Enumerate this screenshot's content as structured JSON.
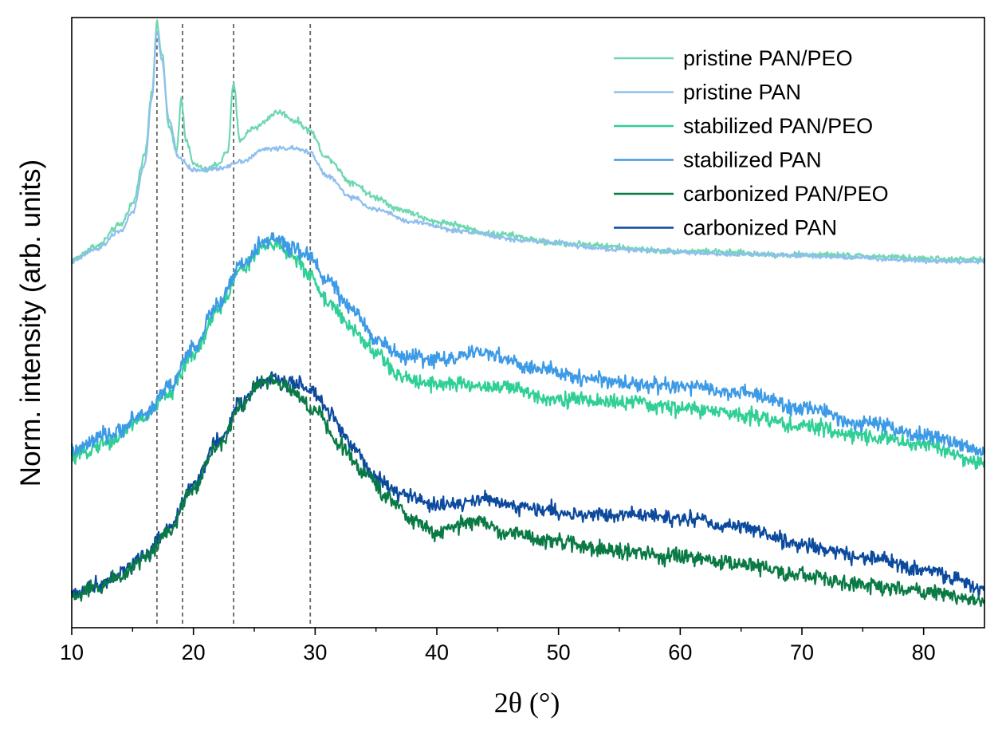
{
  "chart_data": {
    "type": "line",
    "title": "",
    "xlabel": "2θ (°)",
    "ylabel": "Norm. intensity (arb. units)",
    "xlim": [
      10,
      85
    ],
    "ylim": [
      0,
      100
    ],
    "xticks": [
      10,
      20,
      30,
      40,
      50,
      60,
      70,
      80
    ],
    "xtick_labels": [
      "10",
      "20",
      "30",
      "40",
      "50",
      "60",
      "70",
      "80"
    ],
    "grid": false,
    "legend_position": "top-right",
    "reference_lines_x": [
      17.0,
      19.1,
      23.3,
      29.6
    ],
    "series": [
      {
        "name": "pristine PAN/PEO",
        "color": "#6fd8b0",
        "noise": 0.35,
        "points": [
          [
            10,
            60.3
          ],
          [
            12,
            62.5
          ],
          [
            14,
            66.0
          ],
          [
            15,
            69.5
          ],
          [
            16,
            77.5
          ],
          [
            16.6,
            88.0
          ],
          [
            17.0,
            99.0
          ],
          [
            17.4,
            94.0
          ],
          [
            18.0,
            82.0
          ],
          [
            18.6,
            78.0
          ],
          [
            19.0,
            86.5
          ],
          [
            19.4,
            80.0
          ],
          [
            20,
            76.0
          ],
          [
            21,
            75.0
          ],
          [
            22,
            76.0
          ],
          [
            22.8,
            78.0
          ],
          [
            23.3,
            89.0
          ],
          [
            23.8,
            80.0
          ],
          [
            25,
            82.0
          ],
          [
            27,
            84.5
          ],
          [
            28.5,
            83.0
          ],
          [
            29.5,
            81.5
          ],
          [
            31,
            77.0
          ],
          [
            33,
            73.0
          ],
          [
            35,
            70.5
          ],
          [
            37,
            68.5
          ],
          [
            40,
            66.5
          ],
          [
            45,
            64.5
          ],
          [
            50,
            63.0
          ],
          [
            60,
            61.7
          ],
          [
            70,
            61.1
          ],
          [
            85,
            60.3
          ]
        ]
      },
      {
        "name": "pristine PAN",
        "color": "#8fbfee",
        "noise": 0.25,
        "points": [
          [
            10,
            60.0
          ],
          [
            12,
            62.0
          ],
          [
            14,
            65.0
          ],
          [
            15,
            68.0
          ],
          [
            16,
            76.0
          ],
          [
            16.6,
            87.0
          ],
          [
            17.0,
            98.0
          ],
          [
            17.4,
            93.0
          ],
          [
            18.0,
            83.0
          ],
          [
            18.8,
            77.0
          ],
          [
            20,
            75.0
          ],
          [
            22,
            75.2
          ],
          [
            24,
            76.5
          ],
          [
            26,
            78.5
          ],
          [
            28,
            78.6
          ],
          [
            29.5,
            78.0
          ],
          [
            31,
            74.0
          ],
          [
            33,
            70.5
          ],
          [
            35,
            68.5
          ],
          [
            38,
            66.5
          ],
          [
            42,
            65.0
          ],
          [
            47,
            63.5
          ],
          [
            55,
            62.0
          ],
          [
            65,
            61.2
          ],
          [
            85,
            60.0
          ]
        ]
      },
      {
        "name": "stabilized PAN/PEO",
        "color": "#2fcf95",
        "noise": 0.9,
        "points": [
          [
            10,
            28.0
          ],
          [
            13,
            30.5
          ],
          [
            16,
            34.5
          ],
          [
            18,
            38.5
          ],
          [
            20,
            45.0
          ],
          [
            22,
            52.0
          ],
          [
            24,
            59.0
          ],
          [
            26,
            62.5
          ],
          [
            27,
            63.0
          ],
          [
            28,
            61.0
          ],
          [
            29.5,
            58.0
          ],
          [
            31,
            53.5
          ],
          [
            33,
            49.0
          ],
          [
            35,
            45.0
          ],
          [
            37,
            41.0
          ],
          [
            40,
            40.0
          ],
          [
            45,
            39.5
          ],
          [
            50,
            37.5
          ],
          [
            55,
            37.0
          ],
          [
            60,
            36.0
          ],
          [
            65,
            35.0
          ],
          [
            70,
            33.0
          ],
          [
            75,
            31.5
          ],
          [
            80,
            30.0
          ],
          [
            85,
            27.0
          ]
        ]
      },
      {
        "name": "stabilized PAN",
        "color": "#3d9ae6",
        "noise": 0.9,
        "points": [
          [
            10,
            29.0
          ],
          [
            13,
            31.5
          ],
          [
            16,
            35.0
          ],
          [
            18,
            39.5
          ],
          [
            20,
            46.0
          ],
          [
            22,
            53.0
          ],
          [
            24,
            59.5
          ],
          [
            26,
            63.5
          ],
          [
            27,
            63.5
          ],
          [
            28,
            62.0
          ],
          [
            29.5,
            61.0
          ],
          [
            31,
            57.0
          ],
          [
            33,
            52.0
          ],
          [
            35,
            47.5
          ],
          [
            37,
            44.5
          ],
          [
            40,
            44.0
          ],
          [
            44,
            45.0
          ],
          [
            48,
            42.5
          ],
          [
            52,
            41.0
          ],
          [
            56,
            40.0
          ],
          [
            60,
            39.5
          ],
          [
            65,
            38.5
          ],
          [
            70,
            36.0
          ],
          [
            75,
            33.5
          ],
          [
            80,
            31.5
          ],
          [
            85,
            29.0
          ]
        ]
      },
      {
        "name": "carbonized PAN/PEO",
        "color": "#0a7a45",
        "noise": 0.9,
        "points": [
          [
            10,
            5.0
          ],
          [
            12,
            6.5
          ],
          [
            14,
            8.5
          ],
          [
            16,
            11.5
          ],
          [
            18,
            16.0
          ],
          [
            20,
            23.0
          ],
          [
            22,
            30.0
          ],
          [
            24,
            36.5
          ],
          [
            25.5,
            40.0
          ],
          [
            26.5,
            40.5
          ],
          [
            28,
            39.0
          ],
          [
            30,
            35.5
          ],
          [
            32,
            30.0
          ],
          [
            34,
            25.5
          ],
          [
            36,
            21.5
          ],
          [
            38,
            17.5
          ],
          [
            40,
            15.5
          ],
          [
            43,
            17.5
          ],
          [
            46,
            15.5
          ],
          [
            50,
            14.0
          ],
          [
            55,
            12.5
          ],
          [
            60,
            11.5
          ],
          [
            65,
            10.5
          ],
          [
            70,
            8.5
          ],
          [
            75,
            7.0
          ],
          [
            80,
            6.0
          ],
          [
            85,
            4.5
          ]
        ]
      },
      {
        "name": "carbonized PAN",
        "color": "#0c4a9e",
        "noise": 0.9,
        "points": [
          [
            10,
            5.5
          ],
          [
            12,
            7.0
          ],
          [
            14,
            9.0
          ],
          [
            16,
            12.0
          ],
          [
            18,
            16.5
          ],
          [
            20,
            23.5
          ],
          [
            22,
            30.5
          ],
          [
            24,
            37.0
          ],
          [
            25.5,
            40.0
          ],
          [
            26.5,
            41.0
          ],
          [
            28,
            40.0
          ],
          [
            29.6,
            39.0
          ],
          [
            31,
            35.5
          ],
          [
            33,
            30.0
          ],
          [
            35,
            24.5
          ],
          [
            37,
            22.0
          ],
          [
            40,
            20.0
          ],
          [
            44,
            21.0
          ],
          [
            48,
            19.5
          ],
          [
            52,
            18.5
          ],
          [
            56,
            18.5
          ],
          [
            60,
            18.0
          ],
          [
            65,
            16.5
          ],
          [
            70,
            13.5
          ],
          [
            75,
            11.5
          ],
          [
            80,
            9.5
          ],
          [
            85,
            6.5
          ]
        ]
      }
    ]
  }
}
